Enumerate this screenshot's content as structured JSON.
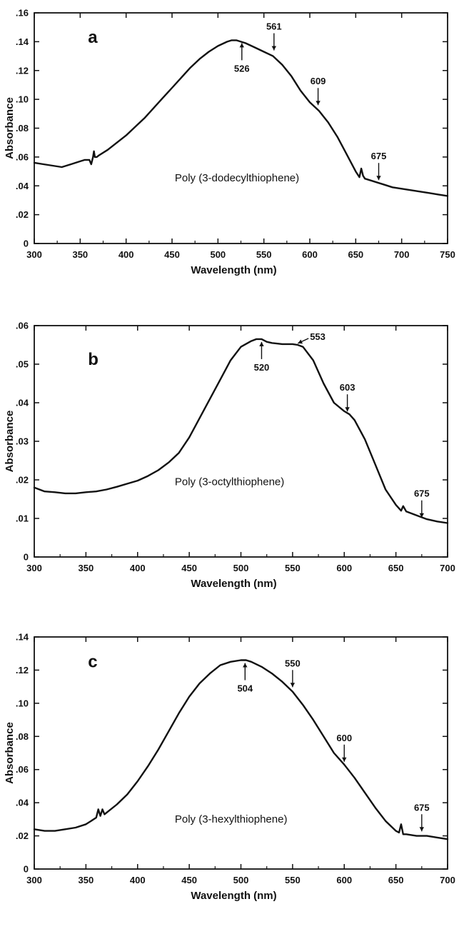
{
  "chart_data": [
    {
      "type": "line",
      "panel_label": "a",
      "annotation": "Poly (3-dodecylthiophene)",
      "xlabel": "Wavelength (nm)",
      "ylabel": "Absorbance",
      "xlim": [
        300,
        750
      ],
      "ylim": [
        0,
        0.16
      ],
      "x_ticks": [
        300,
        350,
        400,
        450,
        500,
        550,
        600,
        650,
        700,
        750
      ],
      "x_tick_labels": [
        "300",
        "350",
        "400",
        "450",
        "500",
        "550",
        "600",
        "650",
        "700",
        "750"
      ],
      "y_ticks": [
        0,
        0.02,
        0.04,
        0.06,
        0.08,
        0.1,
        0.12,
        0.14,
        0.16
      ],
      "y_tick_labels": [
        "0",
        ".02",
        ".04",
        ".06",
        ".08",
        ".10",
        ".12",
        ".14",
        ".16"
      ],
      "peaks": [
        {
          "label": "526",
          "x": 526,
          "y": 0.141,
          "side": "below"
        },
        {
          "label": "561",
          "x": 561,
          "y": 0.132,
          "side": "above"
        },
        {
          "label": "609",
          "x": 609,
          "y": 0.094,
          "side": "above"
        },
        {
          "label": "675",
          "x": 675,
          "y": 0.042,
          "side": "above"
        }
      ],
      "series": [
        {
          "x": [
            300,
            310,
            320,
            330,
            340,
            350,
            355,
            360,
            362,
            364,
            365,
            366,
            368,
            370,
            380,
            390,
            400,
            410,
            420,
            430,
            440,
            450,
            460,
            470,
            480,
            490,
            500,
            510,
            515,
            520,
            525,
            530,
            540,
            550,
            560,
            570,
            580,
            590,
            600,
            610,
            620,
            630,
            640,
            650,
            654,
            656,
            658,
            660,
            670,
            680,
            690,
            700,
            710,
            720,
            730,
            740,
            750
          ],
          "y": [
            0.056,
            0.055,
            0.054,
            0.053,
            0.055,
            0.057,
            0.058,
            0.058,
            0.055,
            0.06,
            0.064,
            0.06,
            0.06,
            0.061,
            0.065,
            0.07,
            0.075,
            0.081,
            0.087,
            0.094,
            0.101,
            0.108,
            0.115,
            0.122,
            0.128,
            0.133,
            0.137,
            0.14,
            0.141,
            0.141,
            0.14,
            0.139,
            0.136,
            0.133,
            0.13,
            0.124,
            0.116,
            0.106,
            0.098,
            0.092,
            0.084,
            0.074,
            0.062,
            0.05,
            0.046,
            0.052,
            0.047,
            0.045,
            0.043,
            0.041,
            0.039,
            0.038,
            0.037,
            0.036,
            0.035,
            0.034,
            0.033
          ]
        }
      ]
    },
    {
      "type": "line",
      "panel_label": "b",
      "annotation": "Poly (3-octylthiophene)",
      "xlabel": "Wavelength (nm)",
      "ylabel": "Absorbance",
      "xlim": [
        300,
        700
      ],
      "ylim": [
        0,
        0.06
      ],
      "x_ticks": [
        300,
        350,
        400,
        450,
        500,
        550,
        600,
        650,
        700
      ],
      "x_tick_labels": [
        "300",
        "350",
        "400",
        "450",
        "500",
        "550",
        "600",
        "650",
        "700"
      ],
      "y_ticks": [
        0,
        0.01,
        0.02,
        0.03,
        0.04,
        0.05,
        0.06
      ],
      "y_tick_labels": [
        "0",
        ".01",
        ".02",
        ".03",
        ".04",
        ".05",
        ".06"
      ],
      "peaks": [
        {
          "label": "520",
          "x": 520,
          "y": 0.0565,
          "side": "below"
        },
        {
          "label": "553",
          "x": 553,
          "y": 0.0552,
          "side": "right"
        },
        {
          "label": "603",
          "x": 603,
          "y": 0.037,
          "side": "above"
        },
        {
          "label": "675",
          "x": 675,
          "y": 0.0095,
          "side": "above"
        }
      ],
      "series": [
        {
          "x": [
            300,
            310,
            320,
            330,
            340,
            350,
            360,
            370,
            380,
            390,
            400,
            410,
            420,
            430,
            440,
            450,
            460,
            470,
            480,
            490,
            500,
            510,
            515,
            520,
            525,
            530,
            540,
            550,
            555,
            560,
            570,
            580,
            590,
            600,
            605,
            610,
            620,
            630,
            640,
            650,
            655,
            657,
            660,
            670,
            680,
            690,
            700
          ],
          "y": [
            0.018,
            0.017,
            0.0168,
            0.0165,
            0.0165,
            0.0168,
            0.017,
            0.0175,
            0.0182,
            0.019,
            0.0198,
            0.021,
            0.0225,
            0.0245,
            0.027,
            0.031,
            0.036,
            0.041,
            0.046,
            0.051,
            0.0545,
            0.056,
            0.0565,
            0.0565,
            0.0558,
            0.0555,
            0.0552,
            0.0552,
            0.055,
            0.0545,
            0.051,
            0.045,
            0.04,
            0.0378,
            0.037,
            0.0355,
            0.0305,
            0.024,
            0.0175,
            0.0135,
            0.012,
            0.0132,
            0.0118,
            0.0108,
            0.0098,
            0.0092,
            0.0088
          ]
        }
      ]
    },
    {
      "type": "line",
      "panel_label": "c",
      "annotation": "Poly (3-hexylthiophene)",
      "xlabel": "Wavelength (nm)",
      "ylabel": "Absorbance",
      "xlim": [
        300,
        700
      ],
      "ylim": [
        0,
        0.14
      ],
      "x_ticks": [
        300,
        350,
        400,
        450,
        500,
        550,
        600,
        650,
        700
      ],
      "x_tick_labels": [
        "300",
        "350",
        "400",
        "450",
        "500",
        "550",
        "600",
        "650",
        "700"
      ],
      "y_ticks": [
        0,
        0.02,
        0.04,
        0.06,
        0.08,
        0.1,
        0.12,
        0.14
      ],
      "y_tick_labels": [
        "0",
        ".02",
        ".04",
        ".06",
        ".08",
        ".10",
        ".12",
        ".14"
      ],
      "peaks": [
        {
          "label": "504",
          "x": 504,
          "y": 0.126,
          "side": "below"
        },
        {
          "label": "550",
          "x": 550,
          "y": 0.108,
          "side": "above"
        },
        {
          "label": "600",
          "x": 600,
          "y": 0.063,
          "side": "above"
        },
        {
          "label": "675",
          "x": 675,
          "y": 0.021,
          "side": "above"
        }
      ],
      "series": [
        {
          "x": [
            300,
            310,
            320,
            330,
            340,
            350,
            355,
            360,
            362,
            364,
            366,
            368,
            370,
            380,
            390,
            400,
            410,
            420,
            430,
            440,
            450,
            460,
            470,
            480,
            490,
            500,
            505,
            510,
            520,
            530,
            540,
            550,
            560,
            570,
            580,
            590,
            600,
            610,
            620,
            630,
            640,
            650,
            653,
            655,
            657,
            660,
            670,
            680,
            690,
            700
          ],
          "y": [
            0.024,
            0.023,
            0.023,
            0.024,
            0.025,
            0.027,
            0.029,
            0.031,
            0.036,
            0.032,
            0.036,
            0.033,
            0.034,
            0.039,
            0.045,
            0.053,
            0.062,
            0.072,
            0.083,
            0.094,
            0.104,
            0.112,
            0.118,
            0.123,
            0.125,
            0.126,
            0.126,
            0.125,
            0.122,
            0.118,
            0.113,
            0.107,
            0.099,
            0.09,
            0.08,
            0.07,
            0.063,
            0.055,
            0.046,
            0.037,
            0.029,
            0.023,
            0.022,
            0.027,
            0.021,
            0.021,
            0.02,
            0.02,
            0.019,
            0.018
          ]
        }
      ]
    }
  ]
}
